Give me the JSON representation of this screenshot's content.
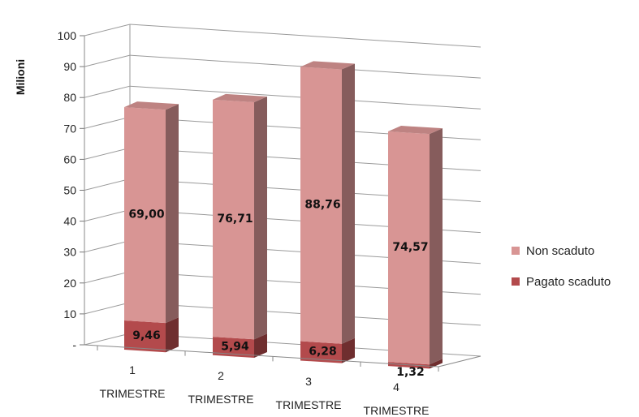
{
  "chart_data": {
    "type": "bar",
    "stacked": true,
    "three_d": true,
    "ylabel": "Milioni",
    "ylim": [
      0,
      100
    ],
    "y_ticks": [
      "-",
      "10",
      "20",
      "30",
      "40",
      "50",
      "60",
      "70",
      "80",
      "90",
      "100"
    ],
    "categories": [
      {
        "num": "1",
        "word": "TRIMESTRE"
      },
      {
        "num": "2",
        "word": "TRIMESTRE"
      },
      {
        "num": "3",
        "word": "TRIMESTRE"
      },
      {
        "num": "4",
        "word": "TRIMESTRE"
      }
    ],
    "series": [
      {
        "name": "Pagato scaduto",
        "values": [
          9.46,
          5.94,
          6.28,
          1.32
        ],
        "labels": [
          "9,46",
          "5,94",
          "6,28",
          "1,32"
        ],
        "color": "#b34a4c"
      },
      {
        "name": "Non scaduto",
        "values": [
          69.0,
          76.71,
          88.76,
          74.57
        ],
        "labels": [
          "69,00",
          "76,71",
          "88,76",
          "74,57"
        ],
        "color": "#d89594"
      }
    ],
    "legend_position": "right",
    "legend_order": [
      "Non scaduto",
      "Pagato scaduto"
    ],
    "grid": true
  }
}
